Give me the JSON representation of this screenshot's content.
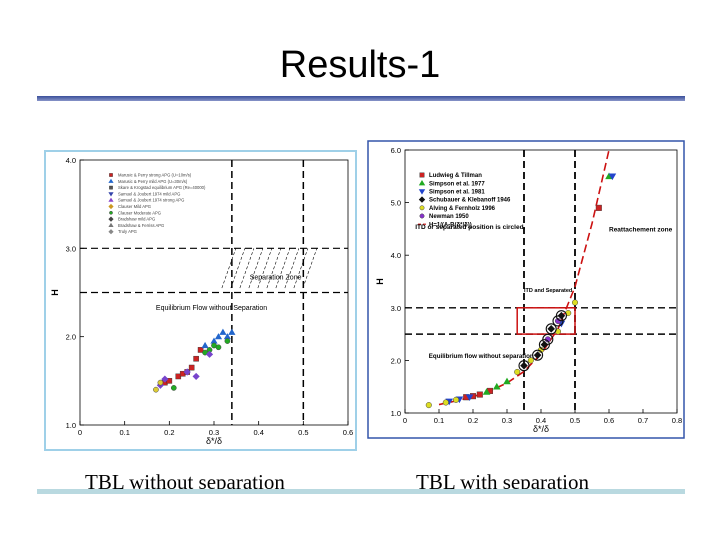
{
  "slide": {
    "title": "Results-1",
    "caption_left": "TBL without separation",
    "caption_right": "TBL with separation"
  },
  "chart_data": [
    {
      "type": "scatter",
      "title": "",
      "xlabel": "δ*/δ",
      "ylabel": "H",
      "xlim": [
        0,
        0.6
      ],
      "ylim": [
        1.0,
        4.0
      ],
      "xticks": [
        "0",
        "0.1",
        "0.2",
        "0.3",
        "0.4",
        "0.5",
        "0.6"
      ],
      "yticks": [
        "1.0",
        "2.0",
        "3.0",
        "4.0"
      ],
      "grid": false,
      "legend_position": "top-left",
      "legend_entries": [
        "Marusic & Perry strong APG (U=10m/s)",
        "Marusic & Perry mild APG (U=30m/s)",
        "Skare & Krogstad equilibrium APG (Re=40000)",
        "Samuel & Joubert 1974 mild APG",
        "Samuel & Joubert 1974 strong APG",
        "Clauser Mild APG",
        "Clauser Moderate APG",
        "Bradshaw mild APG",
        "Bradshaw & Ferriss APG",
        "Truly APG"
      ],
      "annotations": [
        {
          "text": "Separation Zone",
          "x": 0.38,
          "y": 2.65
        },
        {
          "text": "Equilibrium Flow without Separation",
          "x": 0.17,
          "y": 2.3
        }
      ],
      "reference_lines": {
        "vertical_x": [
          0.34,
          0.5
        ],
        "horizontal_y": [
          3.0,
          2.5
        ]
      },
      "series": [
        {
          "name": "Marusic & Perry strong APG (U=10m/s)",
          "color": "#cc2222",
          "marker": "square",
          "x": [
            0.19,
            0.2,
            0.22,
            0.23,
            0.24,
            0.25,
            0.26,
            0.27
          ],
          "y": [
            1.48,
            1.5,
            1.55,
            1.58,
            1.6,
            1.65,
            1.75,
            1.85
          ]
        },
        {
          "name": "Skare & Krogstad equilibrium APG (Re=40000)",
          "color": "#2266cc",
          "marker": "triangle",
          "x": [
            0.28,
            0.3,
            0.31,
            0.32,
            0.33,
            0.34
          ],
          "y": [
            1.9,
            1.95,
            2.0,
            2.05,
            2.0,
            2.05
          ]
        },
        {
          "name": "Clauser Mild APG",
          "color": "#22aa22",
          "marker": "circle",
          "x": [
            0.21,
            0.28,
            0.29,
            0.3,
            0.31,
            0.33
          ],
          "y": [
            1.42,
            1.82,
            1.85,
            1.9,
            1.88,
            1.95
          ]
        },
        {
          "name": "Samuel & Joubert 1974 mild APG",
          "color": "#7744cc",
          "marker": "diamond",
          "x": [
            0.18,
            0.19,
            0.24,
            0.26,
            0.29
          ],
          "y": [
            1.45,
            1.52,
            1.6,
            1.55,
            1.8
          ]
        },
        {
          "name": "Truly APG",
          "color": "#ddcc33",
          "marker": "circle",
          "x": [
            0.17,
            0.18
          ],
          "y": [
            1.4,
            1.48
          ]
        }
      ]
    },
    {
      "type": "scatter",
      "title": "",
      "xlabel": "δ*/δ",
      "ylabel": "H",
      "xlim": [
        0,
        0.8
      ],
      "ylim": [
        1.0,
        6.0
      ],
      "xticks": [
        "0",
        "0.1",
        "0.2",
        "0.3",
        "0.4",
        "0.5",
        "0.6",
        "0.7",
        "0.8"
      ],
      "yticks": [
        "1.0",
        "2.0",
        "3.0",
        "4.0",
        "5.0",
        "6.0"
      ],
      "grid": false,
      "legend_position": "top-left",
      "legend_entries": [
        "Ludwieg & Tillman",
        "Simpson et al. 1977",
        "Simpson et al. 1981",
        "Schubauer & Klebanoff 1946",
        "Alving & Fernholz 1996",
        "Newman 1950",
        "H=1/(A-B(δ*/δ))"
      ],
      "annotations": [
        {
          "text": "ITD or separated  position is circled.",
          "x": 0.03,
          "y": 4.5
        },
        {
          "text": "Reattachement  zone",
          "x": 0.6,
          "y": 4.45
        },
        {
          "text": "ITD and Separated",
          "x": 0.35,
          "y": 3.3
        },
        {
          "text": "Equilibrium flow without separation",
          "x": 0.07,
          "y": 2.05
        }
      ],
      "reference_lines": {
        "vertical_x": [
          0.35,
          0.5
        ],
        "horizontal_y": [
          3.0,
          2.5
        ]
      },
      "box": {
        "x": [
          0.33,
          0.5
        ],
        "y": [
          2.5,
          3.0
        ]
      },
      "fit_curve": {
        "name": "H=1/(A-B(δ*/δ))",
        "color": "#cc1111",
        "x": [
          0.1,
          0.15,
          0.2,
          0.25,
          0.3,
          0.35,
          0.4,
          0.45,
          0.5,
          0.55,
          0.6
        ],
        "y": [
          1.16,
          1.23,
          1.31,
          1.42,
          1.57,
          1.79,
          2.12,
          2.6,
          3.4,
          4.6,
          6.0
        ]
      },
      "series": [
        {
          "name": "Ludwieg & Tillman",
          "color": "#cc2222",
          "marker": "square",
          "x": [
            0.18,
            0.2,
            0.22,
            0.25,
            0.57
          ],
          "y": [
            1.3,
            1.32,
            1.35,
            1.42,
            4.9
          ]
        },
        {
          "name": "Simpson et al. 1977",
          "color": "#22aa22",
          "marker": "triangle",
          "x": [
            0.24,
            0.27,
            0.3,
            0.6
          ],
          "y": [
            1.4,
            1.5,
            1.6,
            5.5
          ]
        },
        {
          "name": "Simpson et al. 1981",
          "color": "#2244cc",
          "marker": "triangle-down",
          "x": [
            0.13,
            0.16,
            0.19,
            0.46,
            0.61
          ],
          "y": [
            1.22,
            1.26,
            1.3,
            2.7,
            5.5
          ]
        },
        {
          "name": "Schubauer & Klebanoff 1946",
          "color": "#111111",
          "marker": "diamond",
          "x": [
            0.35,
            0.39,
            0.41,
            0.43,
            0.46
          ],
          "y": [
            1.9,
            2.1,
            2.3,
            2.6,
            2.85
          ]
        },
        {
          "name": "Alving & Fernholz 1996",
          "color": "#dddd22",
          "marker": "circle",
          "x": [
            0.07,
            0.12,
            0.15,
            0.33,
            0.37,
            0.4,
            0.45,
            0.48,
            0.5
          ],
          "y": [
            1.15,
            1.2,
            1.25,
            1.78,
            2.0,
            2.2,
            2.55,
            2.9,
            3.1
          ]
        },
        {
          "name": "Newman 1950",
          "color": "#8833cc",
          "marker": "circle",
          "x": [
            0.42,
            0.45
          ],
          "y": [
            2.4,
            2.75
          ]
        }
      ]
    }
  ]
}
